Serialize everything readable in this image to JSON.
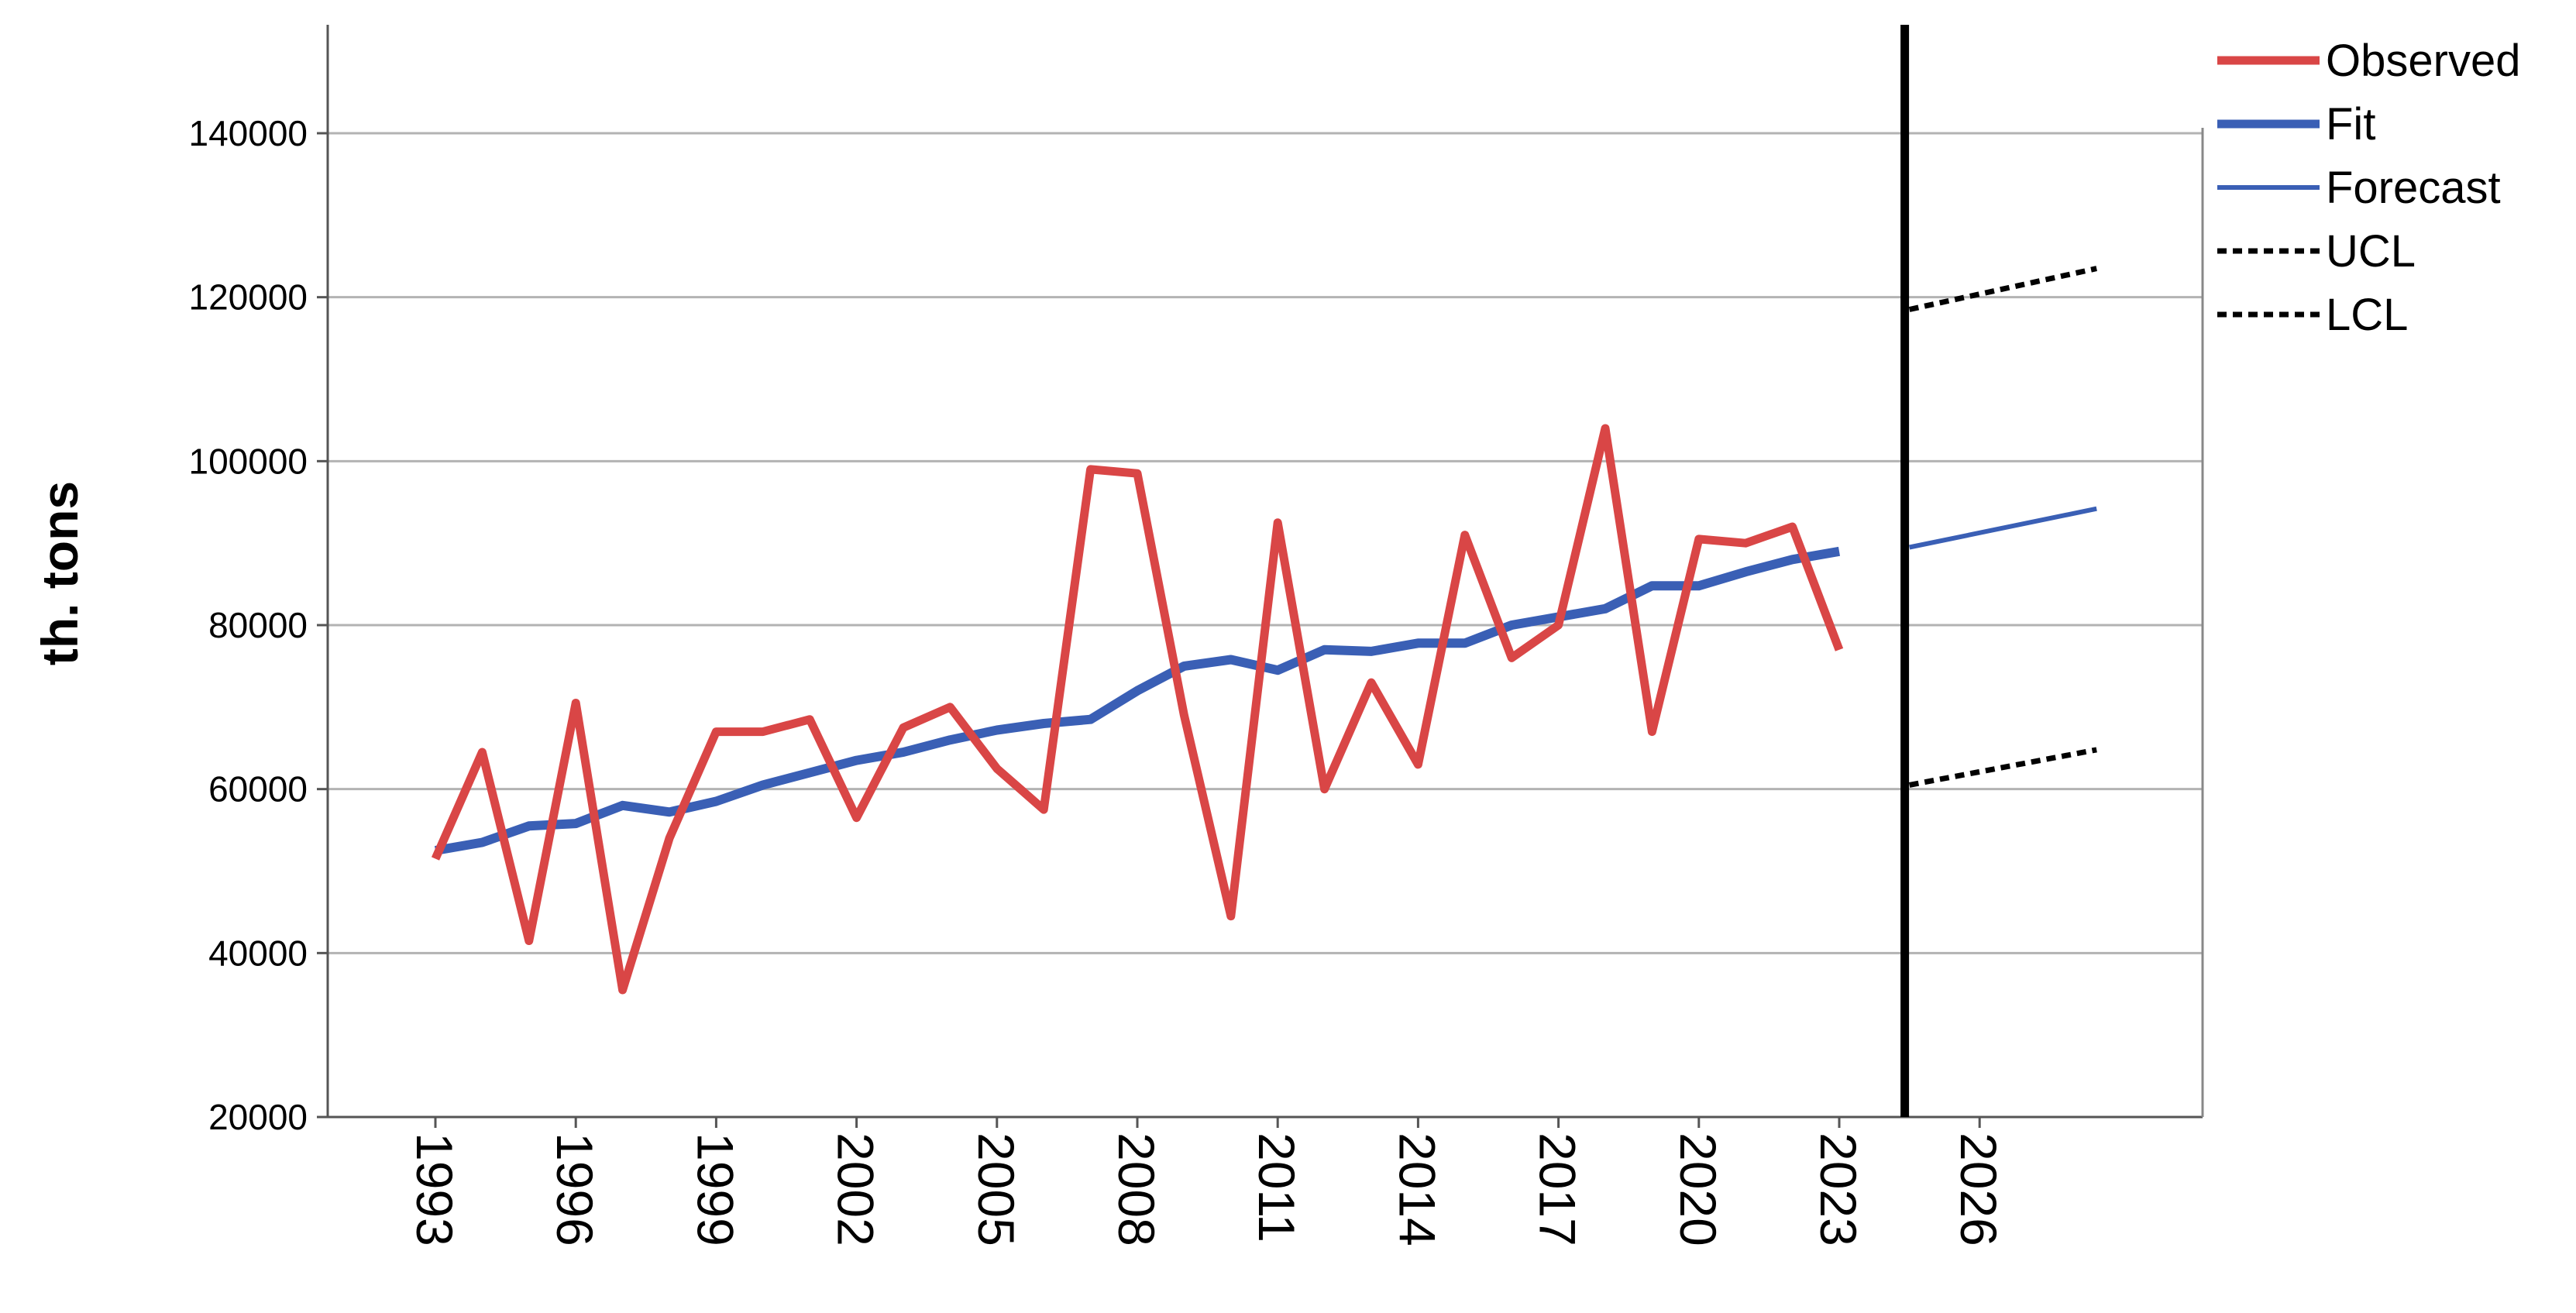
{
  "chart_data": {
    "type": "line",
    "title": "",
    "xlabel": "",
    "ylabel": "th. tons",
    "ylim": [
      20000,
      150000
    ],
    "xlim": [
      1992,
      2030
    ],
    "yticks": [
      20000,
      40000,
      60000,
      80000,
      100000,
      120000,
      140000
    ],
    "ytick_labels": [
      "20000",
      "40000",
      "60000",
      "80000",
      "100000",
      "120000",
      "140000"
    ],
    "xticks": [
      1993,
      1996,
      1999,
      2002,
      2005,
      2008,
      2011,
      2014,
      2017,
      2020,
      2023,
      2026
    ],
    "xtick_labels": [
      "1993",
      "1996",
      "1999",
      "2002",
      "2005",
      "2008",
      "2011",
      "2014",
      "2017",
      "2020",
      "2023",
      "2026"
    ],
    "grid": "horizontal",
    "forecast_origin": 2024.5,
    "legend_position": "top-right",
    "legend": [
      "Observed",
      "Fit",
      "Forecast",
      "UCL",
      "LCL"
    ],
    "series": [
      {
        "name": "Observed",
        "color": "#d94646",
        "style": "solid",
        "x": [
          1993,
          1994,
          1995,
          1996,
          1997,
          1998,
          1999,
          2000,
          2001,
          2002,
          2003,
          2004,
          2005,
          2006,
          2007,
          2008,
          2009,
          2010,
          2011,
          2012,
          2013,
          2014,
          2015,
          2016,
          2017,
          2018,
          2019,
          2020,
          2021,
          2022,
          2023
        ],
        "y": [
          51500,
          64500,
          41500,
          70500,
          35500,
          54000,
          67000,
          67000,
          68500,
          56500,
          67500,
          70000,
          62500,
          57500,
          99000,
          98500,
          69000,
          44500,
          92500,
          60000,
          73000,
          63000,
          91000,
          76000,
          80000,
          104000,
          67000,
          90500,
          90000,
          92000,
          77000
        ]
      },
      {
        "name": "Fit",
        "color": "#3a5fb5",
        "style": "solid-thick",
        "x": [
          1993,
          1994,
          1995,
          1996,
          1997,
          1998,
          1999,
          2000,
          2001,
          2002,
          2003,
          2004,
          2005,
          2006,
          2007,
          2008,
          2009,
          2010,
          2011,
          2012,
          2013,
          2014,
          2015,
          2016,
          2017,
          2018,
          2019,
          2020,
          2021,
          2022,
          2023
        ],
        "y": [
          52500,
          53500,
          55500,
          55800,
          58000,
          57200,
          58500,
          60500,
          62000,
          63500,
          64500,
          66000,
          67200,
          68000,
          68500,
          72000,
          75000,
          75800,
          74500,
          77000,
          76800,
          77800,
          77800,
          80000,
          81000,
          82000,
          84800,
          84800,
          86500,
          88000,
          89000
        ]
      },
      {
        "name": "Forecast",
        "color": "#3a5fb5",
        "style": "solid-thin",
        "x": [
          2024.5,
          2028.5
        ],
        "y": [
          89500,
          94200
        ]
      },
      {
        "name": "UCL",
        "color": "#000000",
        "style": "dotted",
        "x": [
          2024.5,
          2028.5
        ],
        "y": [
          118500,
          123500
        ]
      },
      {
        "name": "LCL",
        "color": "#000000",
        "style": "dotted",
        "x": [
          2024.5,
          2028.5
        ],
        "y": [
          60500,
          64800
        ]
      }
    ]
  }
}
